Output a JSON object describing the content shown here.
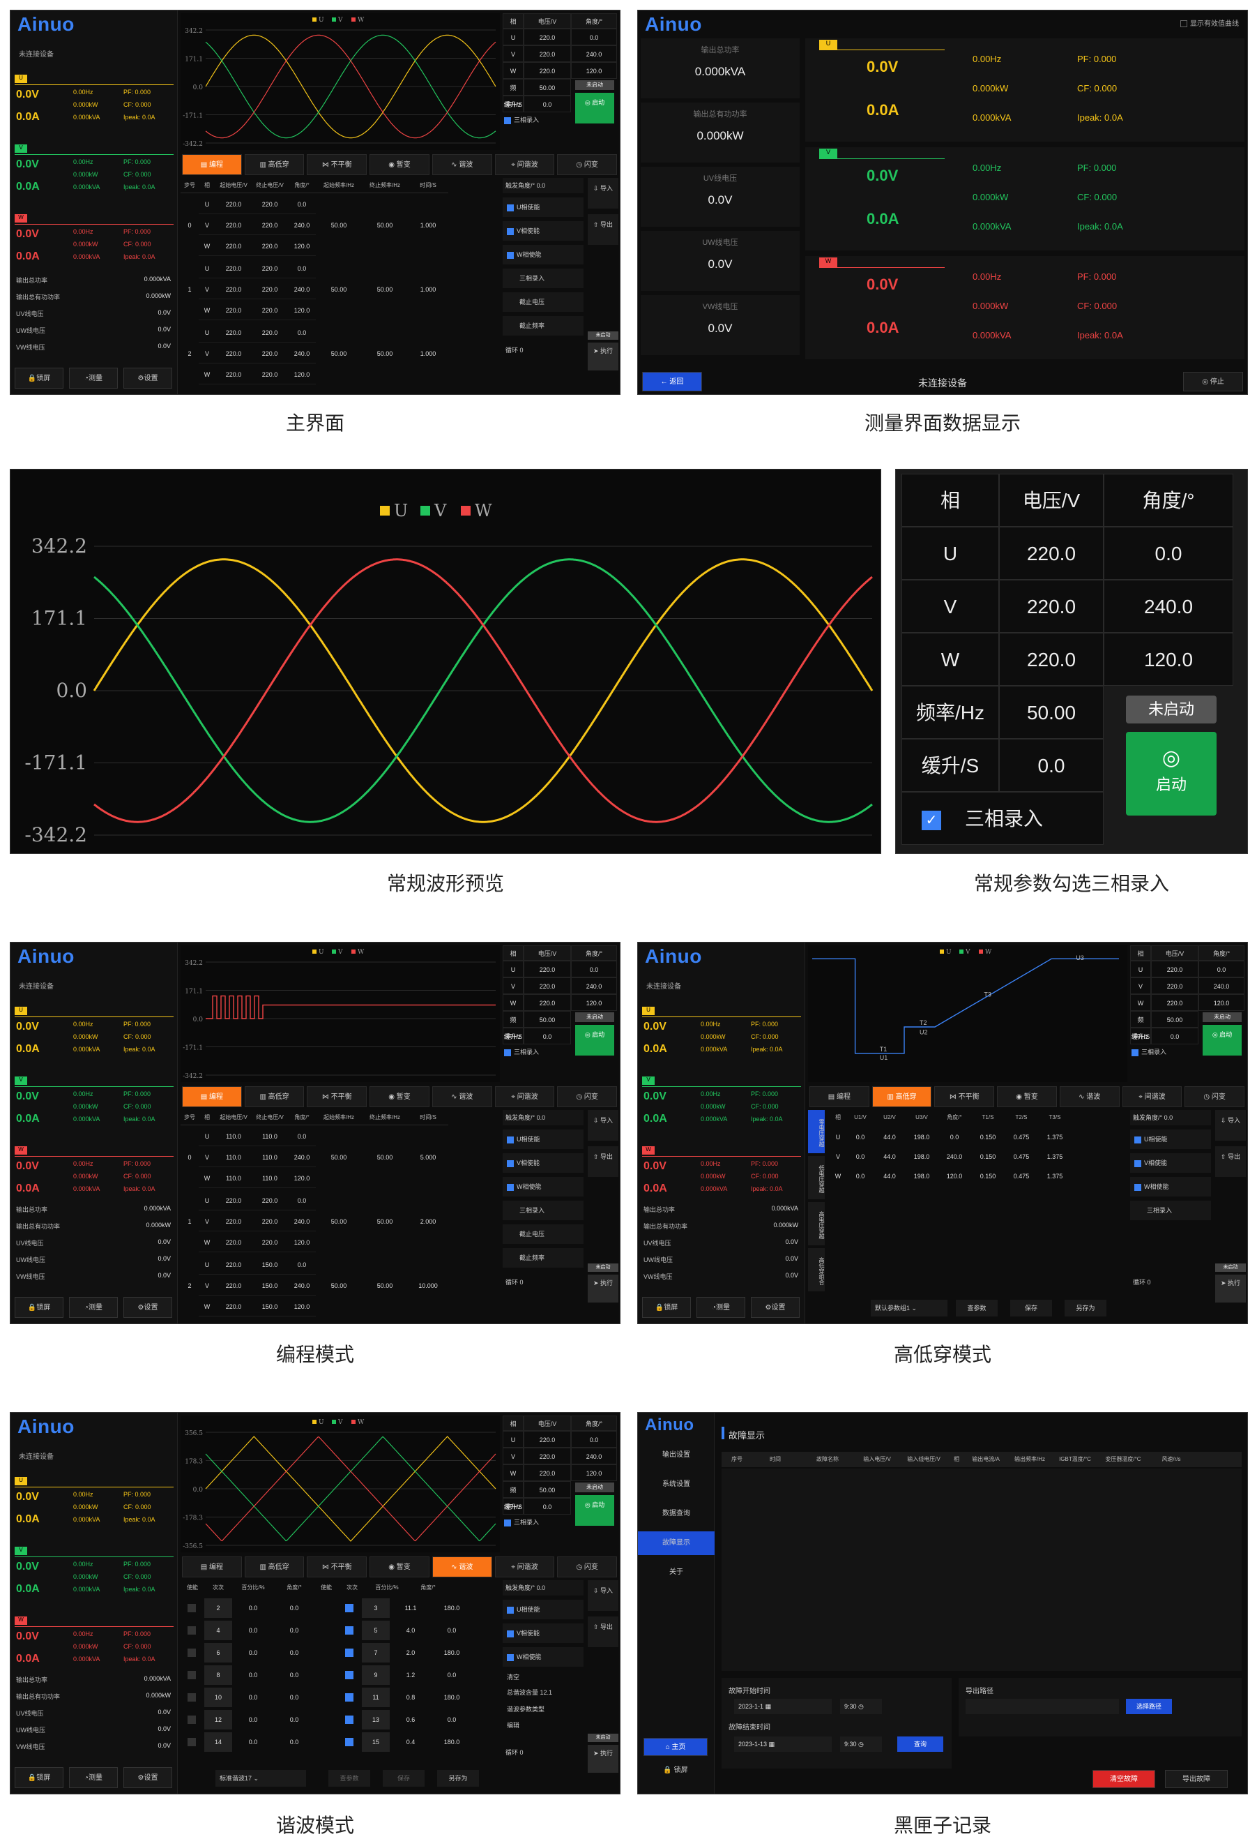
{
  "brand": "Ainuo",
  "captions": {
    "main": "主界面",
    "measure": "测量界面数据显示",
    "wave": "常规波形预览",
    "params": "常规参数勾选三相录入",
    "program": "编程模式",
    "hilo": "高低穿模式",
    "harmonic": "谐波模式",
    "blackbox": "黑匣子记录"
  },
  "status": {
    "disconnected": "未连接设备"
  },
  "phase_rows": [
    {
      "tag": "U",
      "v": "0.0V",
      "a": "0.0A",
      "hz": "0.00Hz",
      "kw": "0.000kW",
      "kva": "0.000kVA",
      "pf": "PF: 0.000",
      "cf": "CF: 0.000",
      "ipeak": "Ipeak: 0.0A"
    },
    {
      "tag": "V",
      "v": "0.0V",
      "a": "0.0A",
      "hz": "0.00Hz",
      "kw": "0.000kW",
      "kva": "0.000kVA",
      "pf": "PF: 0.000",
      "cf": "CF: 0.000",
      "ipeak": "Ipeak: 0.0A"
    },
    {
      "tag": "W",
      "v": "0.0V",
      "a": "0.0A",
      "hz": "0.00Hz",
      "kw": "0.000kW",
      "kva": "0.000kVA",
      "pf": "PF: 0.000",
      "cf": "CF: 0.000",
      "ipeak": "Ipeak: 0.0A"
    }
  ],
  "totals": {
    "out_kva_label": "输出总功率",
    "out_kva": "0.000kVA",
    "out_kw_label": "输出总有功功率",
    "out_kw": "0.000kW",
    "uv_label": "UV线电压",
    "uv": "0.0V",
    "uw_label": "UW线电压",
    "uw": "0.0V",
    "vw_label": "VW线电压",
    "vw": "0.0V"
  },
  "bottom_buttons": {
    "lock": "锁屏",
    "measure": "测量",
    "settings": "设置"
  },
  "params_table": {
    "headers": [
      "相",
      "电压/V",
      "角度/°"
    ],
    "rows": [
      [
        "U",
        "220.0",
        "0.0"
      ],
      [
        "V",
        "220.0",
        "240.0"
      ],
      [
        "W",
        "220.0",
        "120.0"
      ]
    ],
    "freq_label": "频率/Hz",
    "freq": "50.00",
    "ramp_label": "缓升/S",
    "ramp": "0.0",
    "three_phase_label": "三相录入",
    "not_started": "未启动",
    "start": "启动"
  },
  "tabs": [
    "编程",
    "高低穿",
    "不平衡",
    "暂变",
    "谐波",
    "间谐波",
    "闪变"
  ],
  "program_headers": [
    "步号",
    "相",
    "起始电压/V",
    "终止电压/V",
    "角度/°",
    "起始频率/Hz",
    "终止频率/Hz",
    "时间/S"
  ],
  "program_rows_main": [
    {
      "step": "0",
      "rows": [
        [
          "U",
          "220.0",
          "220.0",
          "0.0"
        ],
        [
          "V",
          "220.0",
          "220.0",
          "240.0"
        ],
        [
          "W",
          "220.0",
          "220.0",
          "120.0"
        ]
      ],
      "f1": "50.00",
      "f2": "50.00",
      "t": "1.000"
    },
    {
      "step": "1",
      "rows": [
        [
          "U",
          "220.0",
          "220.0",
          "0.0"
        ],
        [
          "V",
          "220.0",
          "220.0",
          "240.0"
        ],
        [
          "W",
          "220.0",
          "220.0",
          "120.0"
        ]
      ],
      "f1": "50.00",
      "f2": "50.00",
      "t": "1.000"
    },
    {
      "step": "2",
      "rows": [
        [
          "U",
          "220.0",
          "220.0",
          "0.0"
        ],
        [
          "V",
          "220.0",
          "220.0",
          "240.0"
        ],
        [
          "W",
          "220.0",
          "220.0",
          "120.0"
        ]
      ],
      "f1": "50.00",
      "f2": "50.00",
      "t": "1.000"
    }
  ],
  "program_rows_prog": [
    {
      "step": "0",
      "rows": [
        [
          "U",
          "110.0",
          "110.0",
          "0.0"
        ],
        [
          "V",
          "110.0",
          "110.0",
          "240.0"
        ],
        [
          "W",
          "110.0",
          "110.0",
          "120.0"
        ]
      ],
      "f1": "50.00",
      "f2": "50.00",
      "t": "5.000"
    },
    {
      "step": "1",
      "rows": [
        [
          "U",
          "220.0",
          "220.0",
          "0.0"
        ],
        [
          "V",
          "220.0",
          "220.0",
          "240.0"
        ],
        [
          "W",
          "220.0",
          "220.0",
          "120.0"
        ]
      ],
      "f1": "50.00",
      "f2": "50.00",
      "t": "2.000"
    },
    {
      "step": "2",
      "rows": [
        [
          "U",
          "220.0",
          "150.0",
          "0.0"
        ],
        [
          "V",
          "220.0",
          "150.0",
          "240.0"
        ],
        [
          "W",
          "220.0",
          "150.0",
          "120.0"
        ]
      ],
      "f1": "50.00",
      "f2": "50.00",
      "t": "10.000"
    }
  ],
  "right_panel": {
    "trigger_label": "触发角度/°",
    "trigger": "0.0",
    "u_en": "U相使能",
    "v_en": "V相使能",
    "w_en": "W相使能",
    "three_phase": "三相录入",
    "stop_v": "截止电压",
    "stop_f": "截止频率",
    "loop": "循环",
    "loop_val": "0",
    "import": "导入",
    "export": "导出",
    "run": "执行",
    "tag": "未启动"
  },
  "measure": {
    "show_valid": "显示有效值曲线",
    "apparent_label": "输出总功率",
    "apparent": "0.000kVA",
    "active_label": "输出总有功功率",
    "active": "0.000kW",
    "uv_label": "UV线电压",
    "uv": "0.0V",
    "uw_label": "UW线电压",
    "uw": "0.0V",
    "vw_label": "VW线电压",
    "vw": "0.0V",
    "back": "返回",
    "stop": "停止"
  },
  "chart_data": {
    "type": "line",
    "legend": [
      "U",
      "V",
      "W"
    ],
    "y_ticks": [
      "342.2",
      "171.1",
      "0.0",
      "-171.1",
      "-342.2"
    ],
    "ylim": [
      -342.2,
      342.2
    ],
    "series": [
      {
        "name": "U",
        "color": "#f5c518",
        "phase_deg": 0,
        "amplitude": 311.1
      },
      {
        "name": "V",
        "color": "#22c55e",
        "phase_deg": 240,
        "amplitude": 311.1
      },
      {
        "name": "W",
        "color": "#ef4444",
        "phase_deg": 120,
        "amplitude": 311.1
      }
    ]
  },
  "hilo": {
    "labels": [
      "T1",
      "U1",
      "T2",
      "U2",
      "T3",
      "U3"
    ],
    "headers": [
      "相",
      "U1/V",
      "U2/V",
      "U3/V",
      "角度/°",
      "T1/S",
      "T2/S",
      "T3/S"
    ],
    "rows": [
      [
        "U",
        "0.0",
        "44.0",
        "198.0",
        "0.0",
        "0.150",
        "0.475",
        "1.375"
      ],
      [
        "V",
        "0.0",
        "44.0",
        "198.0",
        "240.0",
        "0.150",
        "0.475",
        "1.375"
      ],
      [
        "W",
        "0.0",
        "44.0",
        "198.0",
        "120.0",
        "0.150",
        "0.475",
        "1.375"
      ]
    ],
    "preset": "默认参数组1",
    "query": "查参数",
    "save": "保存",
    "save_as": "另存为",
    "side_tabs": [
      "零电压穿越",
      "低电压穿越",
      "高电压穿越",
      "高低穿组合"
    ]
  },
  "harm": {
    "headers": [
      "使能",
      "次次",
      "百分比/%",
      "角度/°",
      "使能",
      "次次",
      "百分比/%",
      "角度/°"
    ],
    "left": [
      [
        "2",
        "0.0",
        "0.0"
      ],
      [
        "4",
        "0.0",
        "0.0"
      ],
      [
        "6",
        "0.0",
        "0.0"
      ],
      [
        "8",
        "0.0",
        "0.0"
      ],
      [
        "10",
        "0.0",
        "0.0"
      ],
      [
        "12",
        "0.0",
        "0.0"
      ],
      [
        "14",
        "0.0",
        "0.0"
      ]
    ],
    "right": [
      [
        "3",
        "11.1",
        "180.0"
      ],
      [
        "5",
        "4.0",
        "0.0"
      ],
      [
        "7",
        "2.0",
        "180.0"
      ],
      [
        "9",
        "1.2",
        "0.0"
      ],
      [
        "11",
        "0.8",
        "180.0"
      ],
      [
        "13",
        "0.6",
        "0.0"
      ],
      [
        "15",
        "0.4",
        "180.0"
      ]
    ],
    "clear": "清空",
    "total_label": "总谐波含量",
    "total": "12.1",
    "type_label": "谐波参数类型",
    "edit": "编辑",
    "preset": "标准谐波17",
    "query": "查参数",
    "save": "保存",
    "save_as": "另存为",
    "y_ticks": [
      "356.5",
      "178.3",
      "0.0",
      "-178.3",
      "-356.5"
    ]
  },
  "blackbox": {
    "menu": [
      "输出设置",
      "系统设置",
      "数据查询",
      "故障显示",
      "关于"
    ],
    "title": "故障显示",
    "headers": [
      "序号",
      "时间",
      "故障名称",
      "输入电压/V",
      "输入线电压/V",
      "相",
      "输出电流/A",
      "输出频率/Hz",
      "IGBT温度/°C",
      "变压器温度/°C",
      "风速/r/s"
    ],
    "start_label": "故障开始时间",
    "start_date": "2023-1-1",
    "start_time": "9:30",
    "end_label": "故障结束时间",
    "end_date": "2023-1-13",
    "end_time": "9:30",
    "query": "查询",
    "export_path_label": "导出路径",
    "choose_path": "选择路径",
    "home": "主页",
    "lock": "锁屏",
    "clear": "清空故障",
    "export": "导出故障"
  }
}
